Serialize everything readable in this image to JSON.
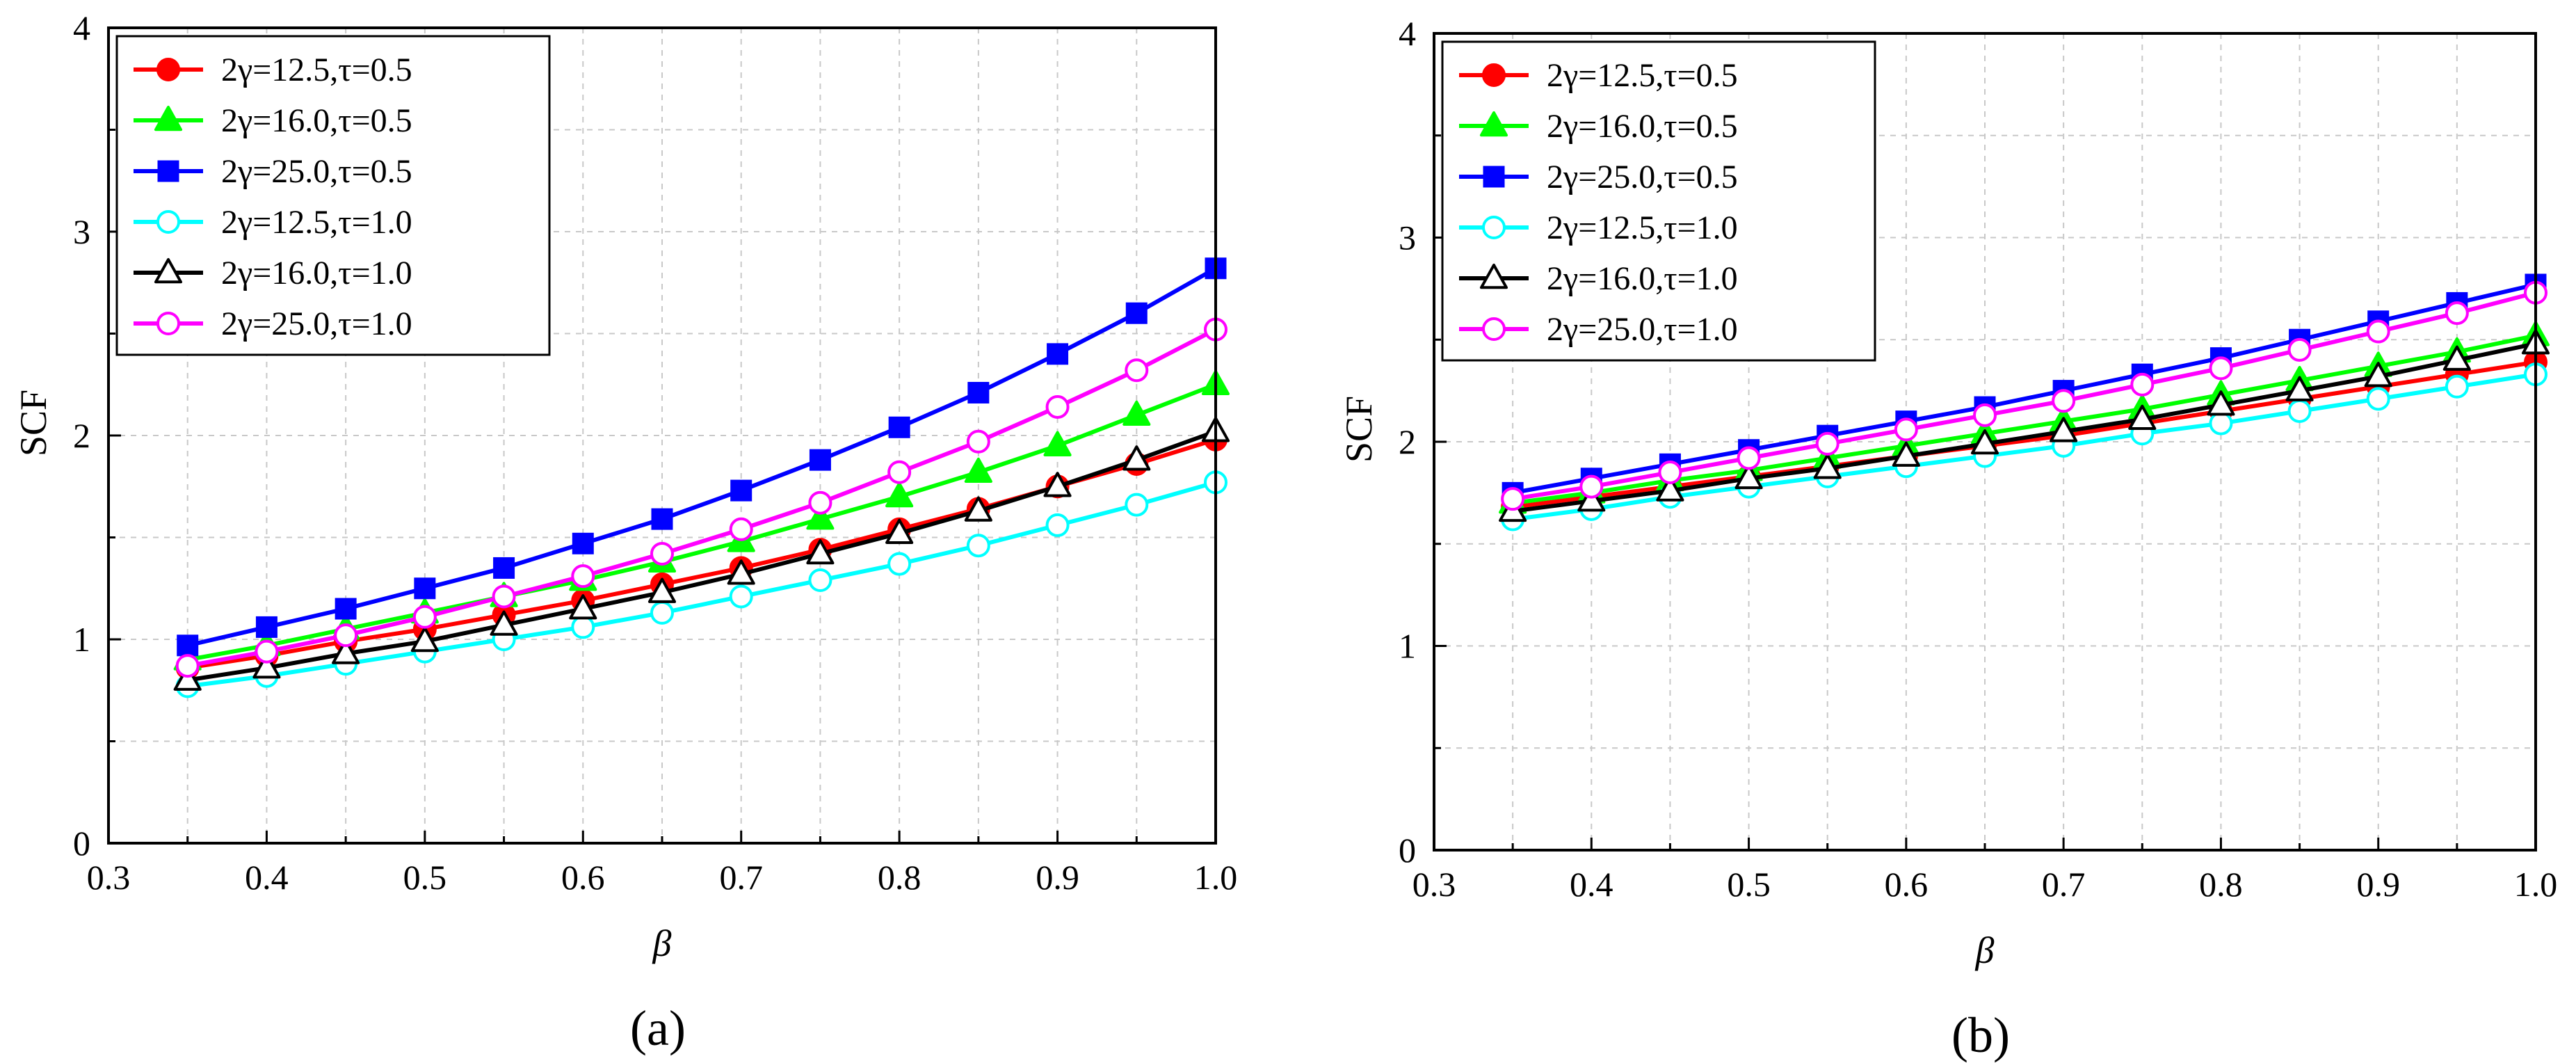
{
  "chart_data": [
    {
      "type": "line",
      "panel_label": "(a)",
      "title": "",
      "xlabel": "β",
      "ylabel": "SCF",
      "xlim": [
        0.3,
        1.0
      ],
      "ylim": [
        0,
        4
      ],
      "xticks": [
        "0.3",
        "0.4",
        "0.5",
        "0.6",
        "0.7",
        "0.8",
        "0.9",
        "1.0"
      ],
      "yticks": [
        "0",
        "1",
        "2",
        "3",
        "4"
      ],
      "grid": true,
      "legend_position": "top-left",
      "x": [
        0.35,
        0.4,
        0.45,
        0.5,
        0.55,
        0.6,
        0.65,
        0.7,
        0.75,
        0.8,
        0.85,
        0.9,
        0.95,
        1.0
      ],
      "series": [
        {
          "name": "2γ=12.5,τ=0.5",
          "color": "#ff0000",
          "marker": "circle-filled",
          "values": [
            0.86,
            0.92,
            0.99,
            1.05,
            1.12,
            1.19,
            1.27,
            1.35,
            1.44,
            1.54,
            1.64,
            1.75,
            1.86,
            1.98
          ]
        },
        {
          "name": "2γ=16.0,τ=0.5",
          "color": "#00ff00",
          "marker": "triangle-filled",
          "values": [
            0.9,
            0.97,
            1.05,
            1.13,
            1.21,
            1.29,
            1.38,
            1.48,
            1.59,
            1.7,
            1.82,
            1.95,
            2.1,
            2.25
          ]
        },
        {
          "name": "2γ=25.0,τ=0.5",
          "color": "#0000ff",
          "marker": "square-filled",
          "values": [
            0.97,
            1.06,
            1.15,
            1.25,
            1.35,
            1.47,
            1.59,
            1.73,
            1.88,
            2.04,
            2.21,
            2.4,
            2.6,
            2.82
          ]
        },
        {
          "name": "2γ=12.5,τ=1.0",
          "color": "#00ffff",
          "marker": "circle-open",
          "values": [
            0.77,
            0.82,
            0.88,
            0.94,
            1.0,
            1.06,
            1.13,
            1.21,
            1.29,
            1.37,
            1.46,
            1.56,
            1.66,
            1.77
          ]
        },
        {
          "name": "2γ=16.0,τ=1.0",
          "color": "#000000",
          "marker": "triangle-open",
          "values": [
            0.8,
            0.86,
            0.93,
            0.99,
            1.07,
            1.15,
            1.23,
            1.32,
            1.42,
            1.52,
            1.63,
            1.75,
            1.88,
            2.02
          ]
        },
        {
          "name": "2γ=25.0,τ=1.0",
          "color": "#ff00ff",
          "marker": "circle-open",
          "values": [
            0.87,
            0.94,
            1.02,
            1.11,
            1.21,
            1.31,
            1.42,
            1.54,
            1.67,
            1.82,
            1.97,
            2.14,
            2.32,
            2.52
          ]
        }
      ]
    },
    {
      "type": "line",
      "panel_label": "(b)",
      "title": "",
      "xlabel": "β",
      "ylabel": "SCF",
      "xlim": [
        0.3,
        1.0
      ],
      "ylim": [
        0,
        4
      ],
      "xticks": [
        "0.3",
        "0.4",
        "0.5",
        "0.6",
        "0.7",
        "0.8",
        "0.9",
        "1.0"
      ],
      "yticks": [
        "0",
        "1",
        "2",
        "3",
        "4"
      ],
      "grid": true,
      "legend_position": "top-left",
      "x": [
        0.35,
        0.4,
        0.45,
        0.5,
        0.55,
        0.6,
        0.65,
        0.7,
        0.75,
        0.8,
        0.85,
        0.9,
        0.95,
        1.0
      ],
      "series": [
        {
          "name": "2γ=12.5,τ=0.5",
          "color": "#ff0000",
          "marker": "circle-filled",
          "values": [
            1.68,
            1.73,
            1.78,
            1.83,
            1.88,
            1.93,
            1.98,
            2.03,
            2.09,
            2.15,
            2.21,
            2.27,
            2.33,
            2.39
          ]
        },
        {
          "name": "2γ=16.0,τ=0.5",
          "color": "#00ff00",
          "marker": "triangle-filled",
          "values": [
            1.7,
            1.75,
            1.81,
            1.86,
            1.92,
            1.98,
            2.04,
            2.1,
            2.16,
            2.23,
            2.3,
            2.37,
            2.44,
            2.52
          ]
        },
        {
          "name": "2γ=25.0,τ=0.5",
          "color": "#0000ff",
          "marker": "square-filled",
          "values": [
            1.75,
            1.82,
            1.89,
            1.96,
            2.03,
            2.1,
            2.17,
            2.25,
            2.33,
            2.41,
            2.5,
            2.59,
            2.68,
            2.77
          ]
        },
        {
          "name": "2γ=12.5,τ=1.0",
          "color": "#00ffff",
          "marker": "circle-open",
          "values": [
            1.62,
            1.67,
            1.73,
            1.78,
            1.83,
            1.88,
            1.93,
            1.98,
            2.04,
            2.09,
            2.15,
            2.21,
            2.27,
            2.33
          ]
        },
        {
          "name": "2γ=16.0,τ=1.0",
          "color": "#000000",
          "marker": "triangle-open",
          "values": [
            1.66,
            1.71,
            1.76,
            1.82,
            1.87,
            1.93,
            1.99,
            2.05,
            2.11,
            2.18,
            2.25,
            2.32,
            2.4,
            2.48
          ]
        },
        {
          "name": "2γ=25.0,τ=1.0",
          "color": "#ff00ff",
          "marker": "circle-open",
          "values": [
            1.72,
            1.78,
            1.85,
            1.92,
            1.99,
            2.06,
            2.13,
            2.2,
            2.28,
            2.36,
            2.45,
            2.54,
            2.63,
            2.73
          ]
        }
      ]
    }
  ]
}
